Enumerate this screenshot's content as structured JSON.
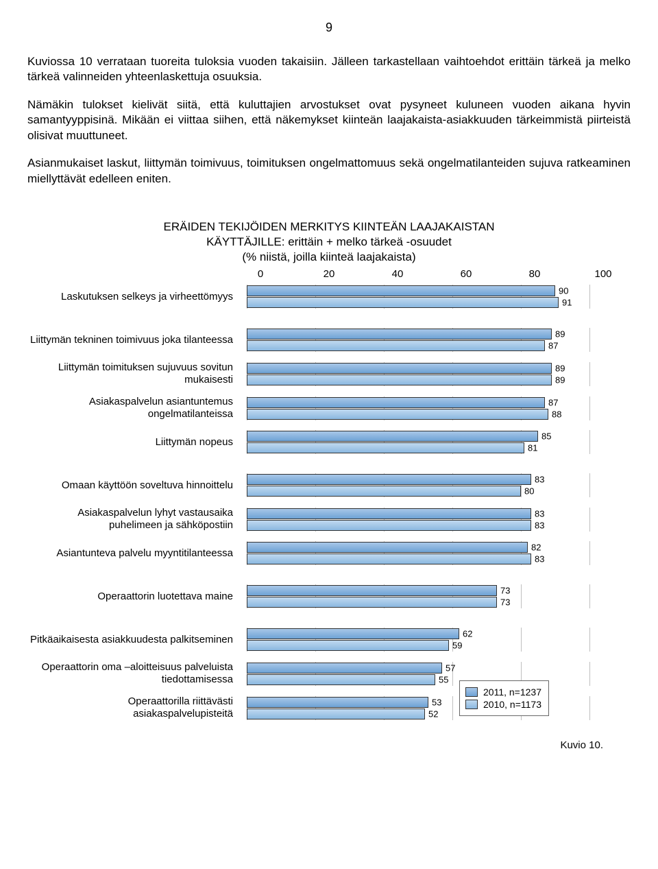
{
  "page_number": "9",
  "paragraphs": [
    "Kuviossa 10 verrataan tuoreita tuloksia vuoden takaisiin. Jälleen tarkastellaan vaihtoehdot erittäin tärkeä ja melko tärkeä valinneiden yhteenlaskettuja osuuksia.",
    "Nämäkin tulokset kielivät siitä, että kuluttajien arvostukset ovat pysyneet kuluneen vuoden aikana hyvin samantyyppisinä. Mikään ei viittaa siihen, että näkemykset kiinteän laajakaista-asiakkuuden tärkeimmistä piirteistä olisivat muuttuneet.",
    "Asianmukaiset laskut, liittymän toimivuus, toimituksen ongelmattomuus sekä ongelmatilanteiden sujuva ratkeaminen miellyttävät edelleen eniten."
  ],
  "chart": {
    "type": "bar",
    "title_lines": [
      "ERÄIDEN TEKIJÖIDEN MERKITYS KIINTEÄN LAAJAKAISTAN",
      "KÄYTTÄJILLE: erittäin + melko tärkeä -osuudet",
      "(% niistä, joilla kiinteä laajakaista)"
    ],
    "xlim": [
      0,
      100
    ],
    "xticks": [
      0,
      20,
      40,
      60,
      80,
      100
    ],
    "grid_color": "#bfbfbf",
    "bar_border": "#333333",
    "series": [
      {
        "key": "s2011",
        "label": "2011, n=1237",
        "color_top": "#a8c7e8",
        "color_bot": "#6ea2d5"
      },
      {
        "key": "s2010",
        "label": "2010, n=1173",
        "color_top": "#c0d9f0",
        "color_bot": "#8bb8e0"
      }
    ],
    "groups": [
      {
        "rows": [
          {
            "label": "Laskutuksen selkeys ja virheettömyys",
            "v2011": 90,
            "v2010": 91
          }
        ]
      },
      {
        "rows": [
          {
            "label": "Liittymän tekninen toimivuus joka tilanteessa",
            "v2011": 89,
            "v2010": 87
          },
          {
            "label": "Liittymän toimituksen sujuvuus sovitun mukaisesti",
            "v2011": 89,
            "v2010": 89
          },
          {
            "label": "Asiakaspalvelun asiantuntemus ongelmatilanteissa",
            "v2011": 87,
            "v2010": 88
          },
          {
            "label": "Liittymän nopeus",
            "v2011": 85,
            "v2010": 81
          }
        ]
      },
      {
        "rows": [
          {
            "label": "Omaan käyttöön soveltuva hinnoittelu",
            "v2011": 83,
            "v2010": 80
          },
          {
            "label": "Asiakaspalvelun lyhyt vastausaika puhelimeen ja sähköpostiin",
            "v2011": 83,
            "v2010": 83
          },
          {
            "label": "Asiantunteva palvelu myyntitilanteessa",
            "v2011": 82,
            "v2010": 83
          }
        ]
      },
      {
        "rows": [
          {
            "label": "Operaattorin luotettava maine",
            "v2011": 73,
            "v2010": 73
          }
        ]
      },
      {
        "rows": [
          {
            "label": "Pitkäaikaisesta asiakkuudesta palkitseminen",
            "v2011": 62,
            "v2010": 59
          },
          {
            "label": "Operaattorin oma –aloitteisuus palveluista tiedottamisessa",
            "v2011": 57,
            "v2010": 55
          },
          {
            "label": "Operaattorilla riittävästi asiakaspalvelupisteitä",
            "v2011": 53,
            "v2010": 52
          }
        ]
      }
    ],
    "caption": "Kuvio 10."
  }
}
